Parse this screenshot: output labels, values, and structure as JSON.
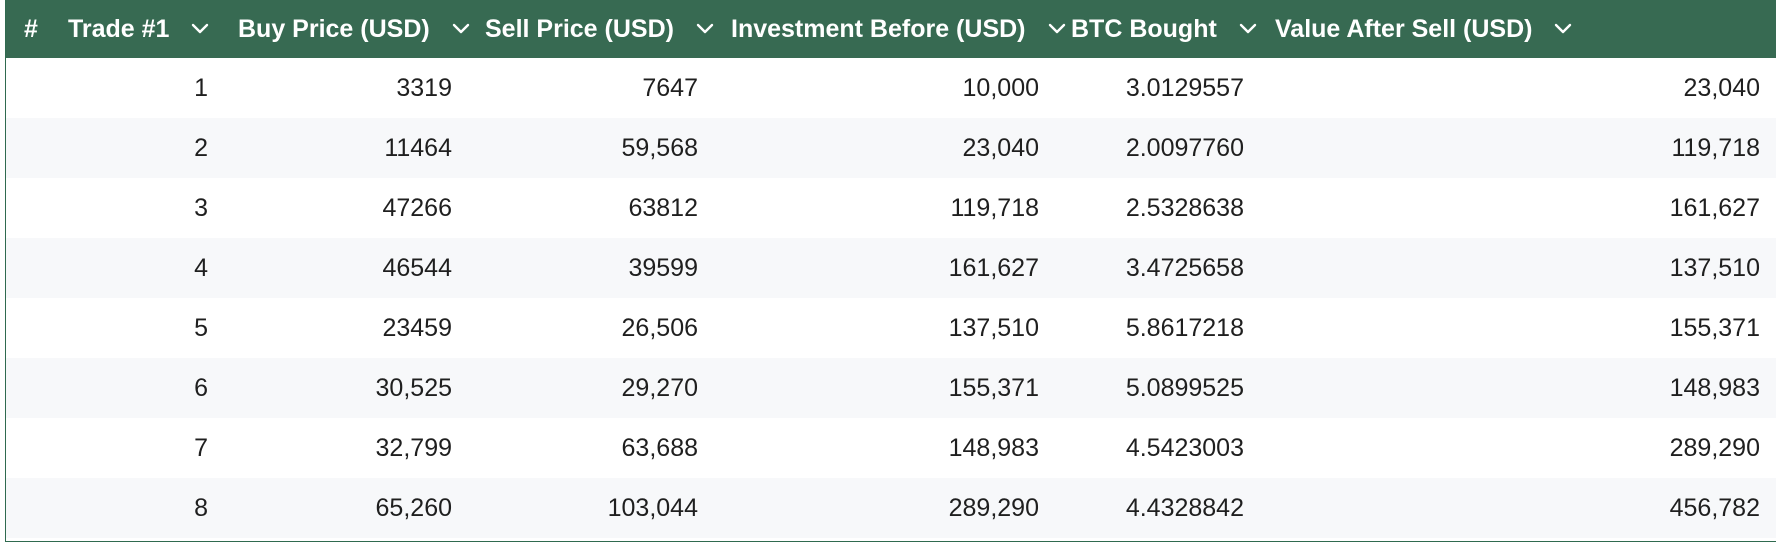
{
  "table": {
    "hash_label": "#",
    "columns": [
      {
        "label": "Trade #1"
      },
      {
        "label": "Buy Price (USD)"
      },
      {
        "label": "Sell Price (USD)"
      },
      {
        "label": "Investment Before (USD)"
      },
      {
        "label": "BTC Bought"
      },
      {
        "label": "Value After Sell (USD)"
      }
    ],
    "rows": [
      [
        "1",
        "3319",
        "7647",
        "10,000",
        "3.0129557",
        "23,040"
      ],
      [
        "2",
        "11464",
        "59,568",
        "23,040",
        "2.0097760",
        "119,718"
      ],
      [
        "3",
        "47266",
        "63812",
        "119,718",
        "2.5328638",
        "161,627"
      ],
      [
        "4",
        "46544",
        "39599",
        "161,627",
        "3.4725658",
        "137,510"
      ],
      [
        "5",
        "23459",
        "26,506",
        "137,510",
        "5.8617218",
        "155,371"
      ],
      [
        "6",
        "30,525",
        "29,270",
        "155,371",
        "5.0899525",
        "148,983"
      ],
      [
        "7",
        "32,799",
        "63,688",
        "148,983",
        "4.5423003",
        "289,290"
      ],
      [
        "8",
        "65,260",
        "103,044",
        "289,290",
        "4.4328842",
        "456,782"
      ]
    ]
  },
  "icons": {
    "sort": "chevron-down-icon"
  },
  "colors": {
    "header_bg": "#376a52",
    "header_text": "#ffffff",
    "row_alt_bg": "#f7f8fa"
  }
}
